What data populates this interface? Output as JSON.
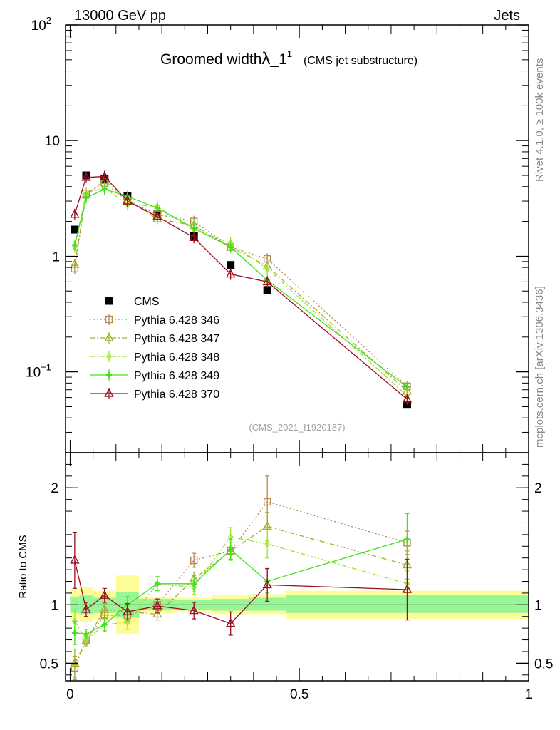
{
  "header": {
    "left": "13000 GeV pp",
    "right": "Jets"
  },
  "title": {
    "main_prefix": "Groomed width",
    "lambda_symbol": "λ",
    "main_suffix": "_1",
    "superscript": "1",
    "sub": "(CMS jet substructure)"
  },
  "side_labels": {
    "rivet": "Rivet 4.1.0, ≥ 100k events",
    "mcplots": "mcplots.cern.ch [arXiv:1306.3436]"
  },
  "analysis_id": "(CMS_2021_I1920187)",
  "colors": {
    "cms": "#000000",
    "p346": "#b5894a",
    "p347": "#a3ac2e",
    "p348": "#9ae62a",
    "p349": "#44e01c",
    "p370": "#990d1e",
    "band_inner": "#98f598",
    "band_outer": "#fdfd98"
  },
  "chart_data": {
    "type": "line",
    "x_bins": [
      0.0,
      0.02,
      0.05,
      0.1,
      0.15,
      0.23,
      0.31,
      0.39,
      0.47,
      1.0
    ],
    "x_centers": [
      0.01,
      0.035,
      0.075,
      0.125,
      0.19,
      0.27,
      0.35,
      0.43,
      0.735
    ],
    "main": {
      "yscale": "log",
      "ylim": [
        0.02,
        100
      ],
      "yticks": [
        {
          "v": 100,
          "label": "10",
          "sup": "2"
        },
        {
          "v": 10,
          "label": "10",
          "sup": ""
        },
        {
          "v": 1,
          "label": "1",
          "sup": ""
        },
        {
          "v": 0.1,
          "label": "10",
          "sup": "−1"
        }
      ]
    },
    "ratio": {
      "ylabel": "Ratio to CMS",
      "ylim": [
        0.35,
        2.3
      ],
      "yticks": [
        {
          "v": 0.5,
          "label": "0.5"
        },
        {
          "v": 1,
          "label": "1"
        },
        {
          "v": 2,
          "label": "2"
        }
      ],
      "inner_band": [
        0.93,
        0.92,
        0.93,
        0.89,
        0.96,
        0.96,
        0.95,
        0.95,
        0.93
      ],
      "inner_band_hi": [
        1.07,
        1.08,
        1.06,
        1.11,
        1.05,
        1.04,
        1.05,
        1.06,
        1.08
      ],
      "outer_band": [
        0.88,
        0.85,
        0.88,
        0.75,
        0.93,
        0.94,
        0.92,
        0.92,
        0.88
      ],
      "outer_band_hi": [
        1.13,
        1.15,
        1.12,
        1.25,
        1.07,
        1.06,
        1.08,
        1.09,
        1.12
      ]
    },
    "xaxis": {
      "xlim": [
        -0.01,
        1.0
      ],
      "xticks": [
        {
          "v": 0,
          "label": "0"
        },
        {
          "v": 0.5,
          "label": "0.5"
        },
        {
          "v": 1,
          "label": "1"
        }
      ]
    },
    "series": [
      {
        "name": "CMS",
        "key": "cms",
        "marker": "square_filled",
        "line": "none",
        "values": [
          1.7,
          5.0,
          4.7,
          3.3,
          2.3,
          1.5,
          0.84,
          0.51,
          0.052
        ],
        "ratio": [
          1,
          1,
          1,
          1,
          1,
          1,
          1,
          1,
          1
        ],
        "ratio_err": [
          0,
          0,
          0,
          0,
          0,
          0,
          0,
          0,
          0
        ]
      },
      {
        "name": "Pythia 6.428 346",
        "key": "p346",
        "marker": "square_open",
        "line": "dotted",
        "values": [
          0.78,
          3.5,
          4.3,
          3.0,
          2.3,
          2.0,
          1.2,
          0.95,
          0.075
        ],
        "ratio": [
          0.46,
          0.7,
          0.91,
          0.91,
          1.0,
          1.38,
          1.46,
          1.88,
          1.53
        ],
        "ratio_err": [
          0.1,
          0.04,
          0.04,
          0.05,
          0.05,
          0.06,
          0.07,
          0.22,
          0.1
        ]
      },
      {
        "name": "Pythia 6.428 347",
        "key": "p347",
        "marker": "triangle_open",
        "line": "dashdot",
        "values": [
          0.85,
          3.4,
          4.5,
          3.1,
          2.1,
          1.85,
          1.2,
          0.82,
          0.068
        ],
        "ratio": [
          0.5,
          0.69,
          0.96,
          0.94,
          0.92,
          1.22,
          1.46,
          1.67,
          1.34
        ],
        "ratio_err": [
          0.12,
          0.05,
          0.05,
          0.06,
          0.05,
          0.06,
          0.07,
          0.12,
          0.12
        ]
      },
      {
        "name": "Pythia 6.428 348",
        "key": "p348",
        "marker": "diamond_open",
        "line": "dashdot",
        "values": [
          1.2,
          3.5,
          3.9,
          2.8,
          2.7,
          1.7,
          1.3,
          0.78,
          0.062
        ],
        "ratio": [
          0.86,
          0.7,
          0.83,
          0.85,
          1.18,
          1.15,
          1.58,
          1.52,
          1.18
        ],
        "ratio_err": [
          0.1,
          0.05,
          0.05,
          0.06,
          0.06,
          0.06,
          0.08,
          0.12,
          0.11
        ]
      },
      {
        "name": "Pythia 6.428 349",
        "key": "p349",
        "marker": "plus",
        "line": "solid",
        "values": [
          1.25,
          3.2,
          3.8,
          3.3,
          2.6,
          1.75,
          1.2,
          0.62,
          0.074
        ],
        "ratio": [
          0.76,
          0.75,
          0.83,
          1.0,
          1.18,
          1.18,
          1.47,
          1.2,
          1.56
        ],
        "ratio_err": [
          0.1,
          0.04,
          0.06,
          0.07,
          0.06,
          0.07,
          0.09,
          0.1,
          0.22
        ]
      },
      {
        "name": "Pythia 6.428 370",
        "key": "p370",
        "marker": "triangle_open",
        "line": "solid",
        "values": [
          2.3,
          4.8,
          4.9,
          3.0,
          2.2,
          1.45,
          0.7,
          0.6,
          0.058
        ],
        "ratio": [
          1.38,
          0.96,
          1.08,
          0.94,
          0.99,
          0.95,
          0.84,
          1.17,
          1.13
        ],
        "ratio_err": [
          0.24,
          0.06,
          0.06,
          0.07,
          0.06,
          0.07,
          0.1,
          0.14,
          0.26
        ]
      }
    ]
  }
}
